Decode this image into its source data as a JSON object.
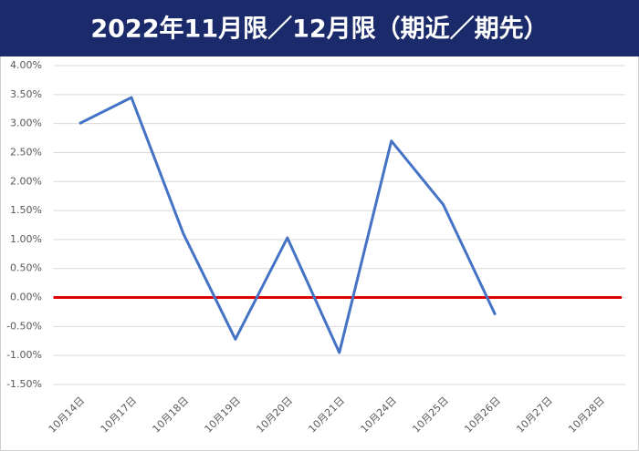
{
  "chart_data": {
    "type": "line",
    "title": "2022年11月限／12月限（期近／期先）",
    "categories": [
      "10月14日",
      "10月17日",
      "10月18日",
      "10月19日",
      "10月20日",
      "10月21日",
      "10月24日",
      "10月25日",
      "10月26日",
      "10月27日",
      "10月28日"
    ],
    "series": [
      {
        "color": "#4472c4",
        "values": [
          3.0,
          3.45,
          1.1,
          -0.72,
          1.03,
          -0.95,
          2.7,
          1.6,
          -0.3,
          null,
          null
        ]
      }
    ],
    "ylim": [
      -1.5,
      4.0
    ],
    "yticks": [
      {
        "value": -1.5,
        "label": "-1.50%"
      },
      {
        "value": -1.0,
        "label": "-1.00%"
      },
      {
        "value": -0.5,
        "label": "-0.50%"
      },
      {
        "value": 0,
        "label": "0.00%"
      },
      {
        "value": 0.5,
        "label": "0.50%"
      },
      {
        "value": 1.0,
        "label": "1.00%"
      },
      {
        "value": 1.5,
        "label": "1.50%"
      },
      {
        "value": 2.0,
        "label": "2.00%"
      },
      {
        "value": 2.5,
        "label": "2.50%"
      },
      {
        "value": 3.0,
        "label": "3.00%"
      },
      {
        "value": 3.5,
        "label": "3.50%"
      },
      {
        "value": 4.0,
        "label": "4.00%"
      }
    ],
    "grid": true,
    "reference_line": {
      "value": 0,
      "color": "#e00000"
    }
  }
}
